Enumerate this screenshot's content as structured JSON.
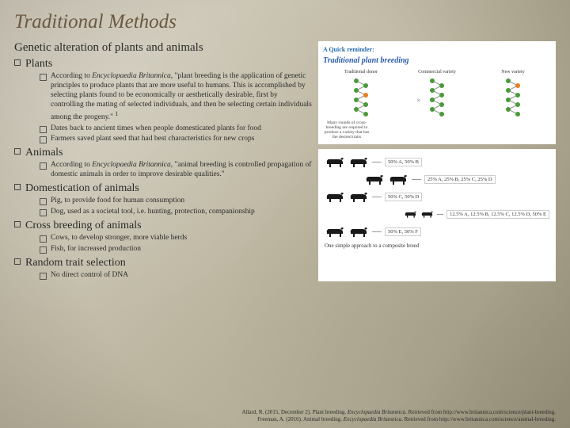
{
  "title": "Traditional Methods",
  "subtitle": "Genetic alteration of plants and animals",
  "sections": [
    {
      "head": "Plants",
      "items": [
        "According to <i>Encyclopaedia Britannica</i>, \"plant breeding is the application of genetic principles to produce plants that are more useful to humans. This is accomplished by selecting plants found to be economically or aesthetically desirable, first by controlling the mating of selected individuals, and then be selecting certain individuals among the progeny.\" <sup>1</sup>",
        "Dates back to ancient times when people domesticated plants for food",
        "Farmers saved plant seed that had best characteristics for new crops"
      ]
    },
    {
      "head": "Animals",
      "items": [
        "According to <i>Encyclopaedia Britannica</i>, \"animal breeding is controlled propagation of domestic animals in order to improve desirable qualities.\""
      ]
    },
    {
      "head": "Domestication of animals",
      "items": [
        "Pig, to provide food for human consumption",
        "Dog, used as a societal tool, i.e. hunting, protection, companionship"
      ]
    },
    {
      "head": "Cross breeding of animals",
      "items": [
        "Cows, to develop stronger, more viable herds",
        "Fish, for increased production"
      ]
    },
    {
      "head": "Random trait selection",
      "items": [
        "No direct control of DNA"
      ]
    }
  ],
  "plant_diagram": {
    "reminder": "A Quick reminder:",
    "title": "Traditional plant breeding",
    "columns": [
      "Traditional donor",
      "Commercial variety",
      "New variety"
    ],
    "caption": "Many rounds of cross-breeding are required to produce a variety that has the desired traits",
    "bead_colors": {
      "green": "#4a9a3a",
      "orange": "#e67e22",
      "cross": "#888888"
    },
    "bg": "#ffffff"
  },
  "animal_diagram": {
    "rows": [
      {
        "cows": 2,
        "label": "50% A, 50% B",
        "indent": 0
      },
      {
        "cows": 2,
        "label": "25% A, 25% B, 25% C, 25% D",
        "indent": 1
      },
      {
        "cows": 2,
        "label": "50% C, 50% D",
        "indent": 0
      },
      {
        "cows": 2,
        "label": "12.5% A, 12.5% B, 12.5% C, 12.5% D, 50% E",
        "indent": 2
      },
      {
        "cows": 2,
        "label": "50% E, 50% F",
        "indent": 0
      }
    ],
    "caption": "One simple approach to a composite breed",
    "cow_color": "#1a1a1a",
    "bg": "#ffffff"
  },
  "citations": [
    "Allard, R. (2015, December 2). Plant breeding. <i>Encyclopaedia Britannica</i>. Retrieved from http://www.britannica.com/science/plant-breeding.",
    "Freeman, A. (2016). Animal breeding. <i>Encyclopaedia Britannica</i>. Retrieved from http://www.britannica.com/science/animal-breeding."
  ]
}
